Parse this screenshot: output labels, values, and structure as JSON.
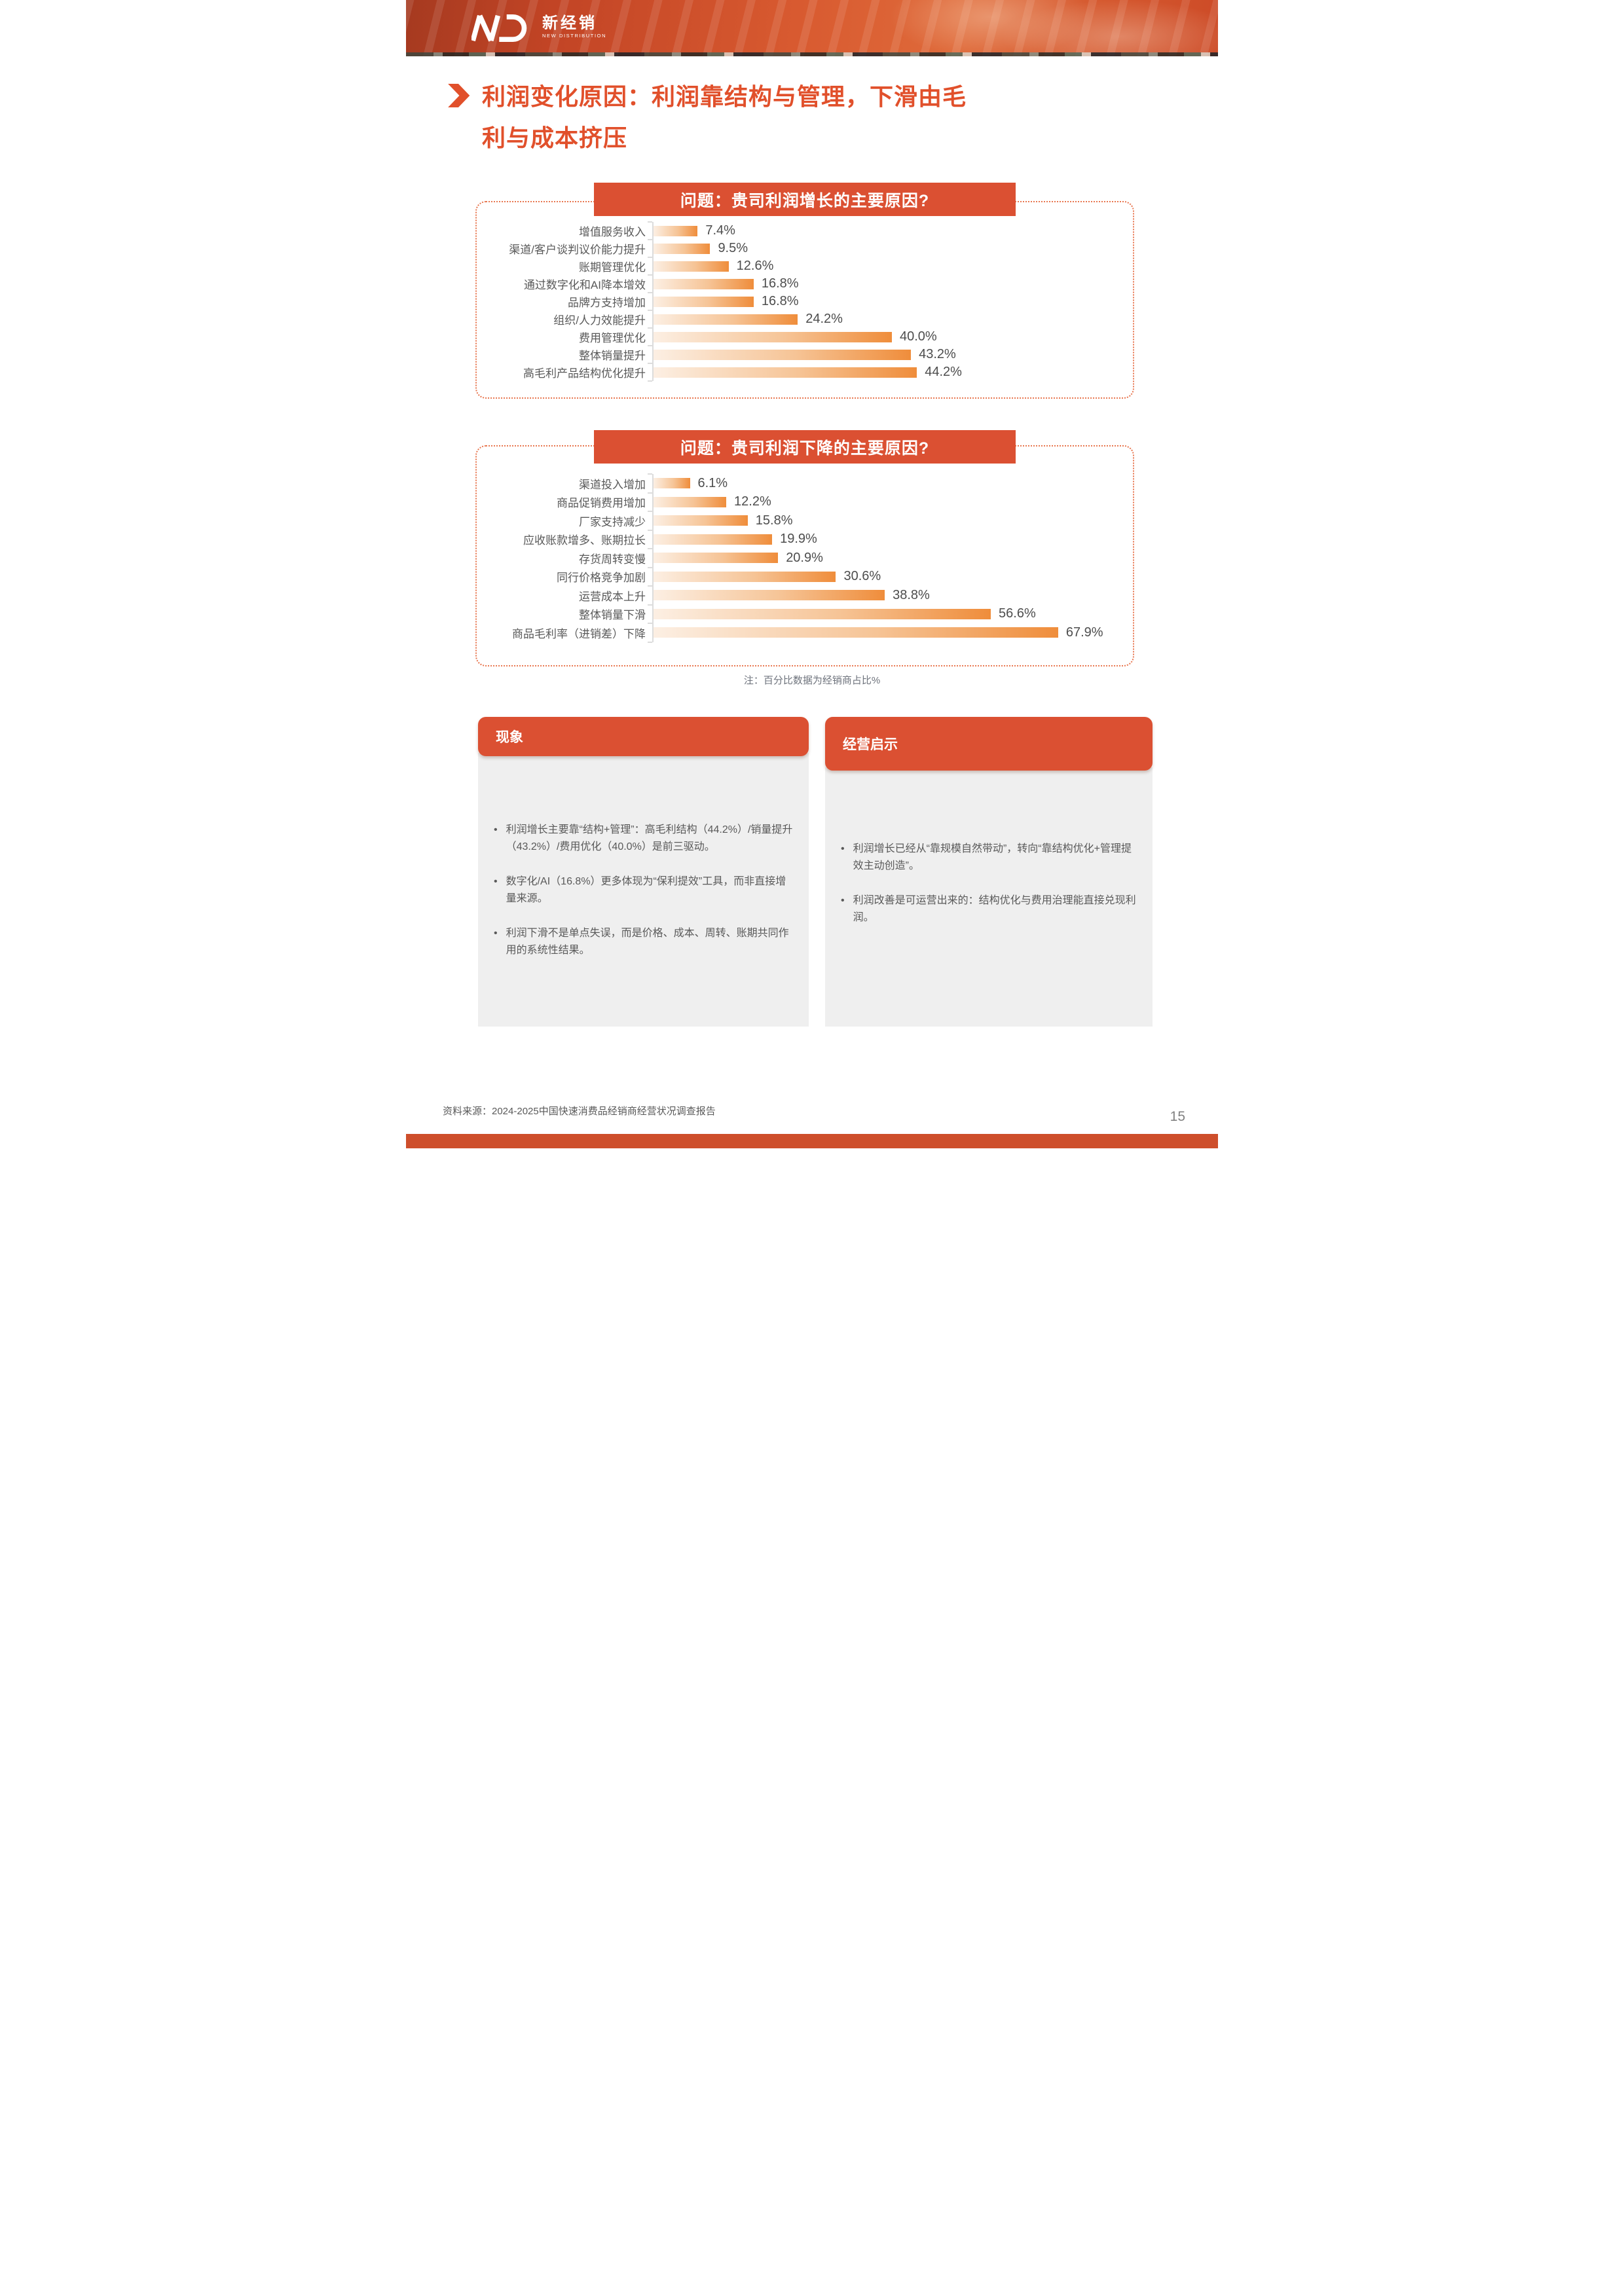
{
  "header": {
    "logo": {
      "monogram": "ND",
      "zh": "新经销",
      "en": "NEW DISTRIBUTION"
    }
  },
  "title": {
    "lines": [
      "利润变化原因：利润靠结构与管理，下滑由毛",
      "利与成本挤压"
    ]
  },
  "chart_data": [
    {
      "type": "bar",
      "orientation": "horizontal",
      "title": "问题：贵司利润增长的主要原因?",
      "categories": [
        "增值服务收入",
        "渠道/客户谈判议价能力提升",
        "账期管理优化",
        "通过数字化和AI降本增效",
        "品牌方支持增加",
        "组织/人力效能提升",
        "费用管理优化",
        "整体销量提升",
        "高毛利产品结构优化提升"
      ],
      "values": [
        7.4,
        9.5,
        12.6,
        16.8,
        16.8,
        24.2,
        40.0,
        43.2,
        44.2
      ],
      "value_suffix": "%",
      "xlim": [
        0,
        100
      ],
      "grid": false,
      "legend": "none"
    },
    {
      "type": "bar",
      "orientation": "horizontal",
      "title": "问题：贵司利润下降的主要原因?",
      "categories": [
        "渠道投入增加",
        "商品促销费用增加",
        "厂家支持减少",
        "应收账款增多、账期拉长",
        "存货周转变慢",
        "同行价格竞争加剧",
        "运营成本上升",
        "整体销量下滑",
        "商品毛利率（进销差）下降"
      ],
      "values": [
        6.1,
        12.2,
        15.8,
        19.9,
        20.9,
        30.6,
        38.8,
        56.6,
        67.9
      ],
      "value_suffix": "%",
      "xlim": [
        0,
        100
      ],
      "grid": false,
      "legend": "none"
    }
  ],
  "note": "注：百分比数据为经销商占比%",
  "panels": [
    {
      "title": "现象",
      "bullets": [
        "利润增长主要靠“结构+管理”：高毛利结构（44.2%）/销量提升（43.2%）/费用优化（40.0%）是前三驱动。",
        "数字化/AI（16.8%）更多体现为“保利提效”工具，而非直接增量来源。",
        "利润下滑不是单点失误，而是价格、成本、周转、账期共同作用的系统性结果。"
      ]
    },
    {
      "title": "经营启示",
      "bullets": [
        "利润增长已经从“靠规模自然带动”，转向“靠结构优化+管理提效主动创造”。",
        "利润改善是可运营出来的：结构优化与费用治理能直接兑现利润。"
      ]
    }
  ],
  "footer": {
    "source": "资料来源：2024-2025中国快速消费品经销商经营状况调查报告",
    "page_number": "15"
  },
  "colors": {
    "accent": "#DB5032",
    "title_text": "#E1502B",
    "bar_gradient_start": "#FCEFE3",
    "bar_gradient_end": "#EF8D3B",
    "panel_body_bg": "#EFEFEF",
    "body_text": "#595959",
    "bottom_strip": "#CE4E2B"
  }
}
